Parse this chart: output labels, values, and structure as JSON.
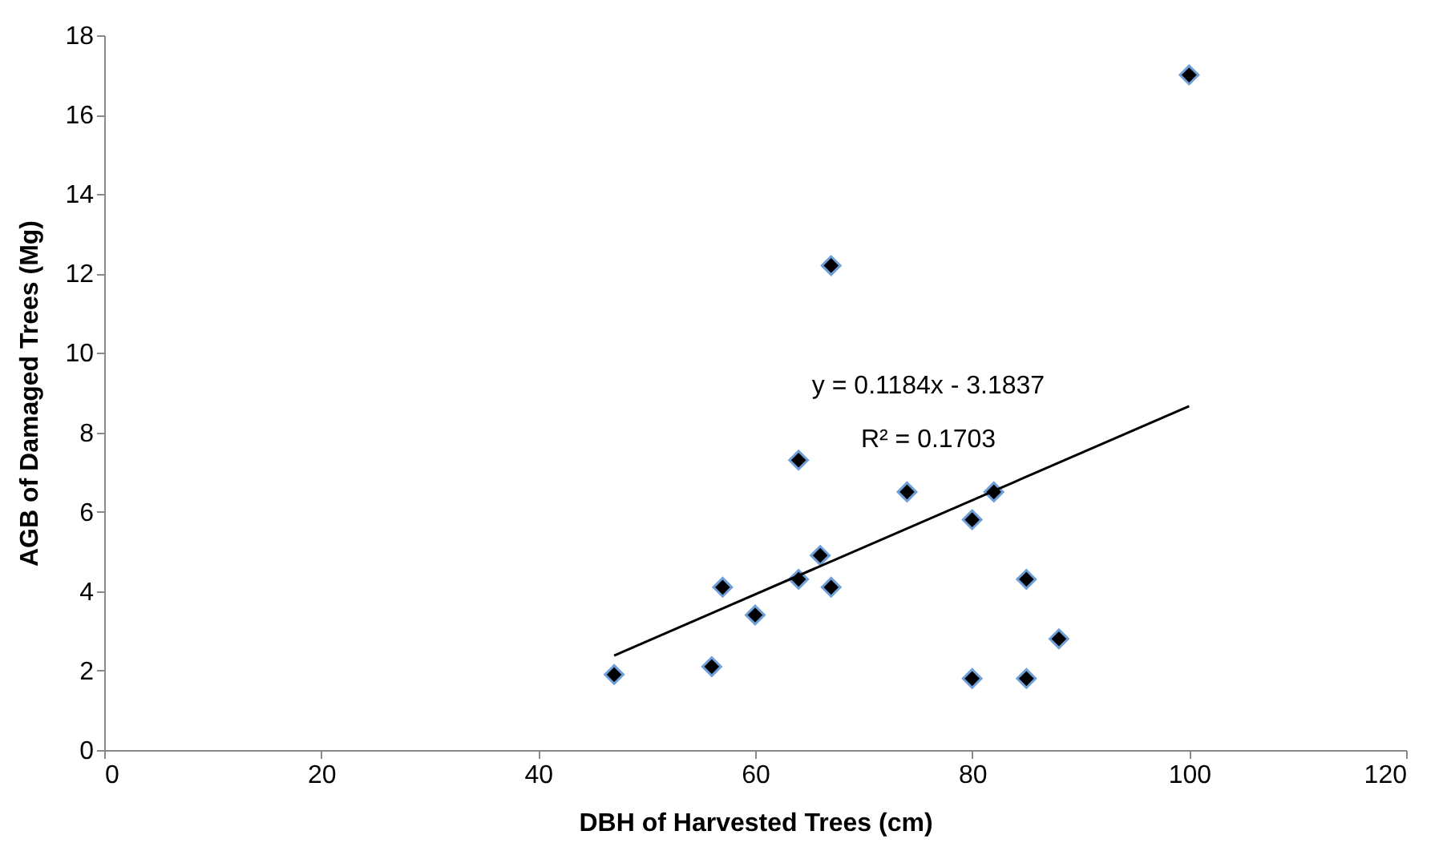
{
  "chart_data": {
    "type": "scatter",
    "xlabel": "DBH of Harvested Trees (cm)",
    "ylabel": "AGB of Damaged Trees (Mg)",
    "xlim": [
      0,
      120
    ],
    "xticks": [
      0,
      20,
      40,
      60,
      80,
      100,
      120
    ],
    "ylim": [
      0,
      18
    ],
    "yticks": [
      0,
      2,
      4,
      6,
      8,
      10,
      12,
      14,
      16,
      18
    ],
    "grid": false,
    "series": [
      {
        "marker": "diamond",
        "color": "#000000",
        "x": [
          47,
          56,
          57,
          60,
          64,
          64,
          66,
          67,
          67,
          74,
          80,
          80,
          82,
          85,
          85,
          88,
          100
        ],
        "values": [
          1.9,
          2.1,
          4.1,
          3.4,
          4.3,
          7.3,
          4.9,
          4.1,
          12.2,
          6.5,
          5.8,
          1.8,
          6.5,
          4.3,
          1.8,
          2.8,
          17.0
        ]
      },
      {
        "type": "line",
        "color": "#000000",
        "x": [
          47,
          100
        ],
        "values": [
          2.38,
          8.66
        ]
      }
    ],
    "annotations": [
      "y = 0.1184x - 3.1837",
      "R² = 0.1703"
    ]
  }
}
